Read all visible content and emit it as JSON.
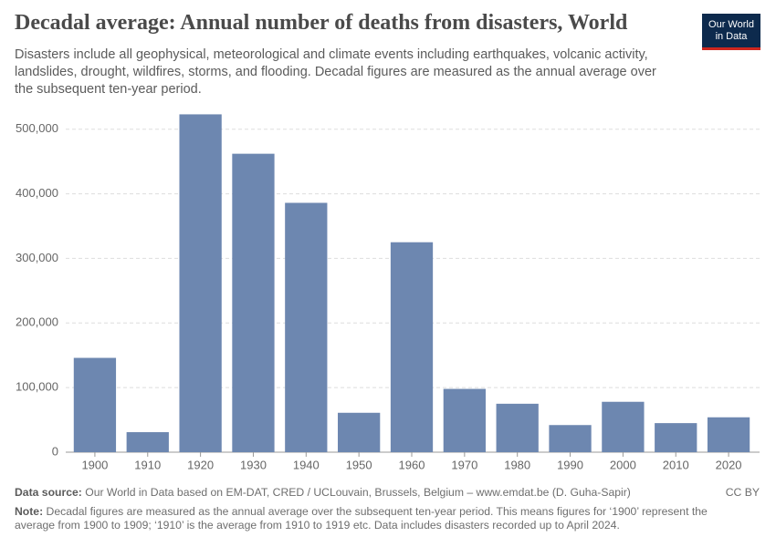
{
  "chart_data": {
    "type": "bar",
    "title": "Decadal average: Annual number of deaths from disasters, World",
    "subtitle": "Disasters include all geophysical, meteorological and climate events including earthquakes, volcanic activity, landslides, drought, wildfires, storms, and flooding. Decadal figures are measured as the annual average over the subsequent ten-year period.",
    "logo": [
      "Our World",
      "in Data"
    ],
    "source_label": "Data source:",
    "source": "Our World in Data based on EM-DAT, CRED / UCLouvain, Brussels, Belgium – www.emdat.be (D. Guha-Sapir)",
    "license": "CC BY",
    "note_label": "Note:",
    "note": "Decadal figures are measured as the annual average over the subsequent ten-year period. This means figures for ‘1900’ represent the average from 1900 to 1909; ‘1910’ is the average from 1910 to 1919 etc. Data includes disasters recorded up to April 2024.",
    "categories": [
      "1900",
      "1910",
      "1920",
      "1930",
      "1940",
      "1950",
      "1960",
      "1970",
      "1980",
      "1990",
      "2000",
      "2010",
      "2020"
    ],
    "values": [
      146000,
      31000,
      523000,
      462000,
      386000,
      61000,
      325000,
      98000,
      75000,
      42000,
      78000,
      45000,
      54000
    ],
    "color": "#6d87b0",
    "ylim": [
      0,
      525000
    ],
    "yticks": [
      0,
      {
        "value": 100000,
        "label": "100,000"
      },
      {
        "value": 200000,
        "label": "200,000"
      },
      {
        "value": 300000,
        "label": "300,000"
      },
      {
        "value": 400000,
        "label": "400,000"
      },
      {
        "value": 500000,
        "label": "500,000"
      }
    ],
    "grid": true
  }
}
